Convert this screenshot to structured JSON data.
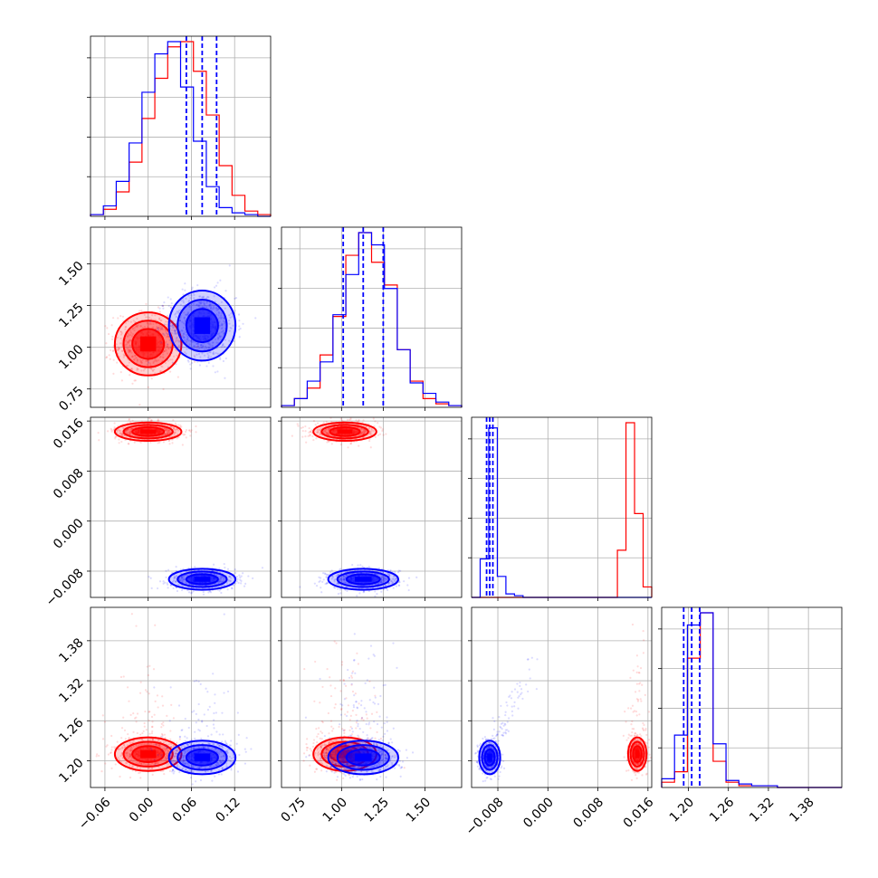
{
  "chart_data": {
    "type": "corner",
    "series": [
      {
        "name": "",
        "color": "#ff0000",
        "params": [
          {
            "mean": 0.0,
            "sd": 0.022
          },
          {
            "mean": 1.02,
            "sd": 0.09
          },
          {
            "mean": 0.0143,
            "sd": 0.0007
          },
          {
            "mean": 1.21,
            "sd": 0.012
          }
        ],
        "hist": [
          [
            0.01,
            0.04,
            0.14,
            0.31,
            0.56,
            0.79,
            0.97,
            1.0,
            0.83,
            0.58,
            0.29,
            0.12,
            0.03,
            0.01
          ],
          [
            0.01,
            0.05,
            0.11,
            0.3,
            0.52,
            0.87,
            1.0,
            0.83,
            0.7,
            0.33,
            0.15,
            0.05,
            0.02,
            0.01
          ],
          [
            0.0,
            0.0,
            0.0,
            0.0,
            0.0,
            0.0,
            0.0,
            0.0,
            0.0,
            0.0,
            0.0,
            0.0,
            0.0,
            0.0,
            0.0,
            0.0,
            0.0,
            0.27,
            1.0,
            0.48,
            0.06
          ],
          [
            0.03,
            0.09,
            0.74,
            1.0,
            0.15,
            0.03,
            0.01,
            0.01,
            0.01,
            0.0,
            0.0,
            0.0,
            0.0,
            0.0
          ]
        ]
      },
      {
        "name": "",
        "color": "#0000ff",
        "params": [
          {
            "mean": 0.075,
            "sd": 0.022
          },
          {
            "mean": 1.13,
            "sd": 0.1
          },
          {
            "mean": -0.0093,
            "sd": 0.0008
          },
          {
            "mean": 1.205,
            "sd": 0.012
          }
        ],
        "quantiles": [
          [
            0.053,
            0.075,
            0.095
          ],
          [
            1.01,
            1.13,
            1.25
          ],
          [
            -0.0098,
            -0.0093,
            -0.0088
          ],
          [
            1.193,
            1.205,
            1.217
          ]
        ],
        "hist": [
          [
            0.01,
            0.06,
            0.2,
            0.42,
            0.71,
            0.93,
            1.0,
            0.74,
            0.43,
            0.17,
            0.05,
            0.02,
            0.01,
            0.0
          ],
          [
            0.01,
            0.05,
            0.15,
            0.26,
            0.53,
            0.76,
            1.0,
            0.93,
            0.68,
            0.33,
            0.14,
            0.08,
            0.03,
            0.01
          ],
          [
            0.0,
            0.22,
            0.97,
            0.12,
            0.02,
            0.01,
            0.0,
            0.0,
            0.0,
            0.0,
            0.0,
            0.0,
            0.0,
            0.0,
            0.0,
            0.0,
            0.0,
            0.0,
            0.0,
            0.0,
            0.0
          ],
          [
            0.05,
            0.3,
            0.93,
            1.0,
            0.25,
            0.04,
            0.02,
            0.01,
            0.01,
            0.0,
            0.0,
            0.0,
            0.0,
            0.0
          ]
        ]
      }
    ],
    "axes": [
      {
        "range": [
          -0.08,
          0.17
        ],
        "ticks": [
          "-0.06",
          "0.00",
          "0.06",
          "0.12"
        ],
        "tick_values": [
          -0.06,
          0.0,
          0.06,
          0.12
        ]
      },
      {
        "range": [
          0.64,
          1.72
        ],
        "ticks": [
          "0.75",
          "1.00",
          "1.25",
          "1.50"
        ],
        "tick_values": [
          0.75,
          1.0,
          1.25,
          1.5
        ]
      },
      {
        "range": [
          -0.0122,
          0.0166
        ],
        "ticks": [
          "-0.008",
          "0.000",
          "0.008",
          "0.016"
        ],
        "tick_values": [
          -0.008,
          0.0,
          0.008,
          0.016
        ]
      },
      {
        "range": [
          1.16,
          1.43
        ],
        "ticks": [
          "1.20",
          "1.26",
          "1.32",
          "1.38"
        ],
        "tick_values": [
          1.2,
          1.26,
          1.32,
          1.38
        ]
      }
    ],
    "grid": true
  }
}
